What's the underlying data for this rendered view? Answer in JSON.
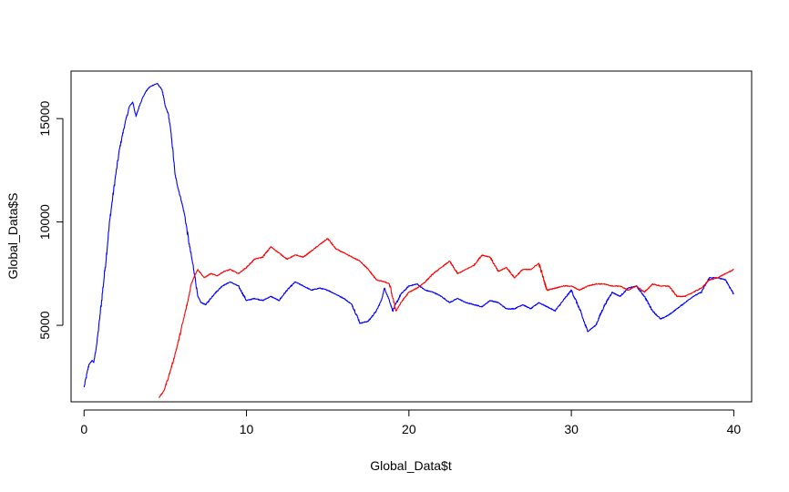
{
  "chart_data": {
    "type": "line",
    "xlabel": "Global_Data$t",
    "ylabel": "Global_Data$S",
    "xlim": [
      -0.8,
      41.1
    ],
    "ylim": [
      1300,
      17300
    ],
    "xticks": [
      0,
      10,
      20,
      30,
      40
    ],
    "yticks": [
      5000,
      10000,
      15000
    ],
    "grid": false,
    "series": [
      {
        "color": "#0000ff",
        "x": [
          0,
          0.3,
          0.5,
          0.6,
          0.8,
          1.0,
          1.3,
          1.6,
          1.9,
          2.2,
          2.5,
          2.8,
          3.0,
          3.2,
          3.4,
          3.6,
          3.8,
          4.0,
          4.2,
          4.5,
          4.8,
          5.0,
          5.2,
          5.4,
          5.6,
          5.8,
          6.0,
          6.2,
          6.5,
          6.8,
          7.0,
          7.2,
          7.5,
          8.0,
          8.5,
          9.0,
          9.5,
          10.0,
          10.5,
          11.0,
          11.5,
          12.0,
          12.5,
          13.0,
          13.5,
          14.0,
          14.5,
          15.0,
          15.5,
          16.0,
          16.5,
          17.0,
          17.5,
          18.0,
          18.3,
          18.5,
          18.8,
          19.0,
          19.5,
          20.0,
          20.5,
          21.0,
          21.5,
          22.0,
          22.5,
          23.0,
          23.5,
          24.0,
          24.5,
          25.0,
          25.5,
          26.0,
          26.5,
          27.0,
          27.5,
          28.0,
          28.5,
          29.0,
          29.5,
          30.0,
          30.5,
          31.0,
          31.5,
          32.0,
          32.5,
          33.0,
          33.5,
          34.0,
          34.5,
          35.0,
          35.5,
          36.0,
          36.5,
          37.0,
          37.5,
          38.0,
          38.5,
          39.0,
          39.5,
          40.0
        ],
        "y": [
          2000,
          3100,
          3300,
          3200,
          4200,
          5600,
          7800,
          10200,
          12000,
          13600,
          14700,
          15600,
          15800,
          15100,
          15600,
          16000,
          16300,
          16500,
          16600,
          16700,
          16400,
          15600,
          15200,
          14000,
          12300,
          11600,
          11000,
          10300,
          8800,
          7500,
          6400,
          6100,
          6000,
          6500,
          6900,
          7100,
          6900,
          6200,
          6300,
          6200,
          6400,
          6200,
          6700,
          7100,
          6900,
          6700,
          6800,
          6700,
          6500,
          6300,
          6000,
          5100,
          5200,
          5700,
          6200,
          6800,
          6200,
          5700,
          6500,
          6900,
          7000,
          6700,
          6600,
          6400,
          6100,
          6300,
          6100,
          6000,
          5900,
          6200,
          6100,
          5800,
          5800,
          6000,
          5800,
          6100,
          5900,
          5700,
          6200,
          6700,
          5800,
          4700,
          5000,
          5900,
          6600,
          6400,
          6800,
          6900,
          6400,
          5700,
          5300,
          5500,
          5800,
          6100,
          6400,
          6600,
          7300,
          7300,
          7200,
          6500
        ],
        "step": [
          0.05,
          0.02,
          0.02,
          0.03,
          0.05,
          0.06,
          0.1,
          0.1,
          0.1,
          0.1,
          0.1,
          0.1,
          0.1,
          0.1,
          0.06,
          0.05,
          0.05,
          0.05,
          0.05,
          0.05,
          0.05,
          0.05,
          0.05,
          0.1,
          0.1,
          0.1,
          0.1,
          0.1,
          0.1,
          0.1,
          0.1,
          0.1,
          0.1,
          0.1,
          0.1,
          0.1,
          0.1,
          0.1,
          0.1,
          0.1,
          0.1,
          0.1,
          0.1,
          0.1,
          0.1,
          0.1,
          0.1,
          0.1,
          0.1,
          0.1,
          0.1,
          0.1,
          0.1,
          0.1,
          0.1,
          0.1,
          0.1,
          0.1,
          0.1,
          0.1,
          0.1,
          0.1,
          0.1,
          0.1,
          0.1,
          0.1,
          0.1,
          0.1,
          0.1,
          0.1,
          0.1,
          0.1,
          0.1,
          0.1,
          0.1,
          0.1,
          0.1,
          0.1,
          0.1,
          0.1,
          0.1,
          0.1,
          0.1,
          0.1,
          0.1,
          0.1,
          0.1,
          0.1,
          0.1,
          0.1,
          0.1,
          0.1,
          0.1,
          0.1,
          0.1,
          0.1,
          0.1,
          0.1,
          0.1,
          0.1
        ]
      },
      {
        "color": "#ff0000",
        "x": [
          4.6,
          4.9,
          5.2,
          5.5,
          5.8,
          6.1,
          6.4,
          6.6,
          6.8,
          7.0,
          7.2,
          7.4,
          7.8,
          8.2,
          8.6,
          9.0,
          9.5,
          10.0,
          10.5,
          11.0,
          11.5,
          12.0,
          12.5,
          13.0,
          13.5,
          14.0,
          14.5,
          15.0,
          15.5,
          16.0,
          16.5,
          17.0,
          17.5,
          18.0,
          18.5,
          18.8,
          19.2,
          19.6,
          20.0,
          20.5,
          21.0,
          21.5,
          22.0,
          22.5,
          23.0,
          23.5,
          24.0,
          24.5,
          25.0,
          25.5,
          26.0,
          26.5,
          27.0,
          27.5,
          28.0,
          28.5,
          29.0,
          29.5,
          30.0,
          30.5,
          31.0,
          31.5,
          32.0,
          32.5,
          33.0,
          33.5,
          34.0,
          34.5,
          35.0,
          35.5,
          36.0,
          36.5,
          37.0,
          37.5,
          38.0,
          38.5,
          39.0,
          39.5,
          40.0
        ],
        "y": [
          1500,
          1800,
          2500,
          3300,
          4200,
          5200,
          6200,
          7000,
          7400,
          7700,
          7500,
          7300,
          7500,
          7400,
          7600,
          7700,
          7500,
          7800,
          8200,
          8300,
          8800,
          8500,
          8200,
          8400,
          8300,
          8600,
          8900,
          9200,
          8700,
          8500,
          8300,
          8100,
          7700,
          7200,
          7100,
          7000,
          5700,
          6200,
          6600,
          6800,
          7100,
          7500,
          7800,
          8100,
          7500,
          7700,
          7900,
          8400,
          8300,
          7600,
          7800,
          7300,
          7700,
          7700,
          8000,
          6700,
          6800,
          6900,
          6900,
          6700,
          6900,
          7000,
          7000,
          6900,
          6900,
          6700,
          6900,
          6600,
          7000,
          6900,
          6900,
          6400,
          6400,
          6600,
          6800,
          7200,
          7300,
          7500,
          7700
        ],
        "step": [
          0.05,
          0.05,
          0.05,
          0.05,
          0.05,
          0.05,
          0.05,
          0.05,
          0.05,
          0.05,
          0.05,
          0.05,
          0.05,
          0.05,
          0.05,
          0.05,
          0.05,
          0.05,
          0.05,
          0.05,
          0.05,
          0.05,
          0.05,
          0.05,
          0.05,
          0.05,
          0.05,
          0.05,
          0.05,
          0.05,
          0.05,
          0.05,
          0.05,
          0.05,
          0.05,
          0.05,
          0.05,
          0.05,
          0.05,
          0.05,
          0.05,
          0.05,
          0.05,
          0.05,
          0.05,
          0.05,
          0.05,
          0.05,
          0.05,
          0.05,
          0.05,
          0.05,
          0.05,
          0.05,
          0.05,
          0.05,
          0.05,
          0.05,
          0.05,
          0.05,
          0.05,
          0.05,
          0.05,
          0.05,
          0.05,
          0.05,
          0.05,
          0.05,
          0.05,
          0.05,
          0.05,
          0.05,
          0.05,
          0.05,
          0.05,
          0.05,
          0.05,
          0.05,
          0.05
        ]
      }
    ]
  }
}
